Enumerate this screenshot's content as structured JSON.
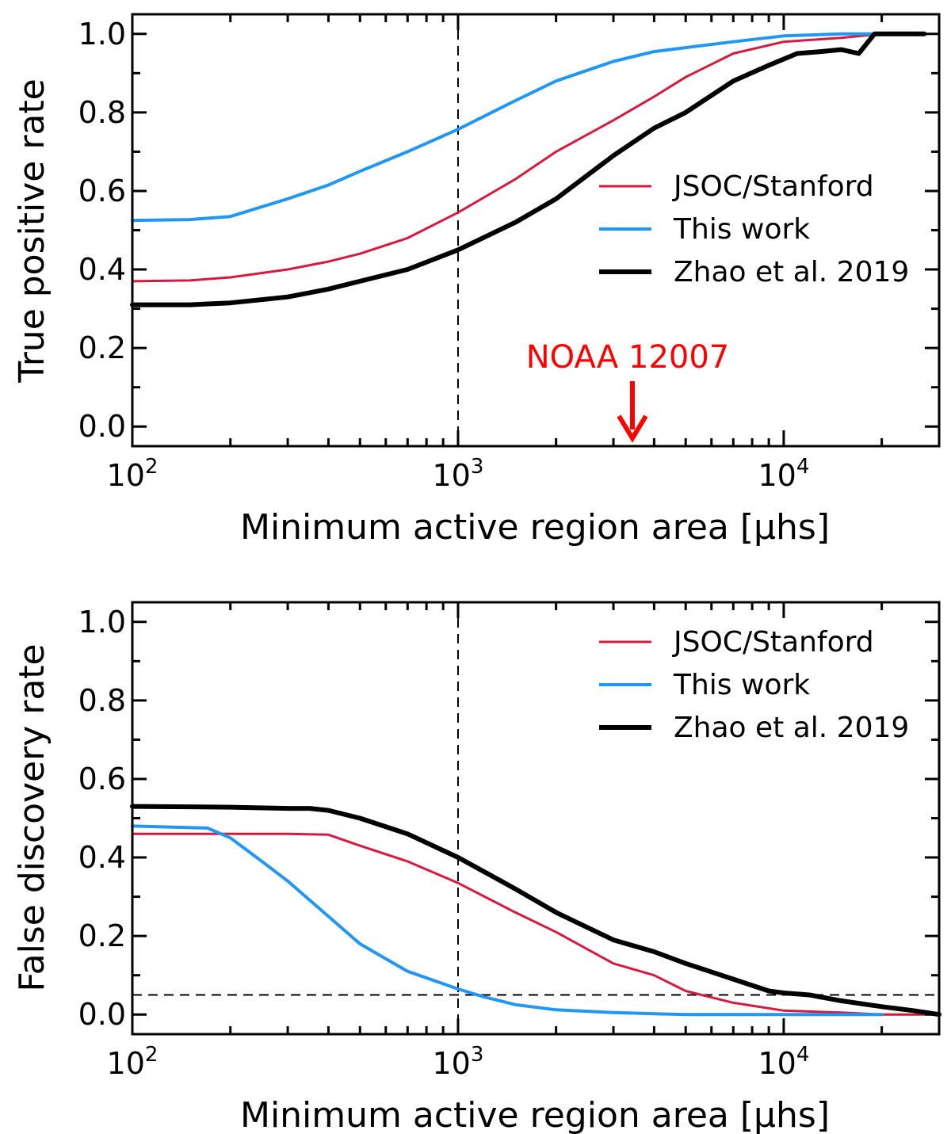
{
  "chart_data": [
    {
      "type": "line",
      "id": "tpr",
      "xscale": "log",
      "xlim": [
        100,
        30000
      ],
      "ylim": [
        -0.05,
        1.05
      ],
      "xlabel": "Minimum active region area",
      "xlabel_unit": "[μhs]",
      "ylabel": "True positive rate",
      "xticks": [
        {
          "value": 100,
          "base": "10",
          "exp": "2"
        },
        {
          "value": 1000,
          "base": "10",
          "exp": "3"
        },
        {
          "value": 10000,
          "base": "10",
          "exp": "4"
        }
      ],
      "yticks": [
        {
          "value": 0.0,
          "label": "0.0"
        },
        {
          "value": 0.2,
          "label": "0.2"
        },
        {
          "value": 0.4,
          "label": "0.4"
        },
        {
          "value": 0.6,
          "label": "0.6"
        },
        {
          "value": 0.8,
          "label": "0.8"
        },
        {
          "value": 1.0,
          "label": "1.0"
        }
      ],
      "vline_x": 1000,
      "hline_y": null,
      "legend_position": "center-right",
      "annotation": {
        "text": "NOAA 12007",
        "x": 3500,
        "color": "#ff0000"
      },
      "series": [
        {
          "name": "JSOC/Stanford",
          "color": "#d7193f",
          "width": 3,
          "x": [
            100,
            150,
            200,
            300,
            400,
            500,
            700,
            1000,
            1500,
            2000,
            3000,
            4000,
            5000,
            7000,
            10000,
            15000,
            20000,
            27000
          ],
          "y": [
            0.37,
            0.372,
            0.38,
            0.4,
            0.42,
            0.44,
            0.48,
            0.545,
            0.63,
            0.7,
            0.78,
            0.84,
            0.89,
            0.95,
            0.98,
            0.99,
            1.0,
            1.0
          ]
        },
        {
          "name": "This work",
          "color": "#2196f3",
          "width": 4,
          "x": [
            100,
            150,
            200,
            300,
            400,
            500,
            700,
            1000,
            1500,
            2000,
            3000,
            4000,
            5000,
            7000,
            10000,
            15000,
            20000,
            27000
          ],
          "y": [
            0.525,
            0.527,
            0.535,
            0.58,
            0.615,
            0.65,
            0.7,
            0.757,
            0.83,
            0.88,
            0.93,
            0.955,
            0.965,
            0.98,
            0.995,
            1.0,
            1.0,
            1.0
          ]
        },
        {
          "name": "Zhao et al. 2019",
          "color": "#000000",
          "width": 6,
          "x": [
            100,
            150,
            200,
            300,
            400,
            500,
            700,
            1000,
            1500,
            2000,
            3000,
            4000,
            5000,
            7000,
            9000,
            11000,
            13000,
            15000,
            17000,
            19000,
            23000,
            27000
          ],
          "y": [
            0.31,
            0.31,
            0.315,
            0.33,
            0.35,
            0.37,
            0.4,
            0.45,
            0.52,
            0.58,
            0.69,
            0.76,
            0.8,
            0.88,
            0.92,
            0.95,
            0.955,
            0.96,
            0.95,
            1.0,
            1.0,
            1.0
          ]
        }
      ]
    },
    {
      "type": "line",
      "id": "fdr",
      "xscale": "log",
      "xlim": [
        100,
        30000
      ],
      "ylim": [
        -0.05,
        1.05
      ],
      "xlabel": "Minimum active region area",
      "xlabel_unit": "[μhs]",
      "ylabel": "False discovery rate",
      "xticks": [
        {
          "value": 100,
          "base": "10",
          "exp": "2"
        },
        {
          "value": 1000,
          "base": "10",
          "exp": "3"
        },
        {
          "value": 10000,
          "base": "10",
          "exp": "4"
        }
      ],
      "yticks": [
        {
          "value": 0.0,
          "label": "0.0"
        },
        {
          "value": 0.2,
          "label": "0.2"
        },
        {
          "value": 0.4,
          "label": "0.4"
        },
        {
          "value": 0.6,
          "label": "0.6"
        },
        {
          "value": 0.8,
          "label": "0.8"
        },
        {
          "value": 1.0,
          "label": "1.0"
        }
      ],
      "vline_x": 1000,
      "hline_y": 0.05,
      "legend_position": "top-right",
      "annotation": null,
      "series": [
        {
          "name": "JSOC/Stanford",
          "color": "#d7193f",
          "width": 3,
          "x": [
            100,
            200,
            300,
            400,
            500,
            700,
            1000,
            1500,
            2000,
            3000,
            4000,
            5000,
            7000,
            10000,
            15000,
            20000,
            27000
          ],
          "y": [
            0.46,
            0.46,
            0.46,
            0.458,
            0.43,
            0.39,
            0.335,
            0.26,
            0.21,
            0.13,
            0.1,
            0.06,
            0.03,
            0.01,
            0.005,
            0.0,
            0.0
          ]
        },
        {
          "name": "This work",
          "color": "#2196f3",
          "width": 4,
          "x": [
            100,
            170,
            200,
            250,
            300,
            400,
            500,
            700,
            1000,
            1200,
            1500,
            2000,
            3000,
            4000,
            5000,
            10000,
            20000
          ],
          "y": [
            0.48,
            0.475,
            0.45,
            0.39,
            0.34,
            0.25,
            0.18,
            0.11,
            0.065,
            0.045,
            0.025,
            0.012,
            0.005,
            0.002,
            0.0,
            0.0,
            0.0
          ]
        },
        {
          "name": "Zhao et al. 2019",
          "color": "#000000",
          "width": 6,
          "x": [
            100,
            200,
            300,
            350,
            400,
            500,
            700,
            1000,
            1500,
            2000,
            3000,
            4000,
            5000,
            7000,
            9000,
            10000,
            12000,
            15000,
            20000,
            25000,
            30000
          ],
          "y": [
            0.53,
            0.528,
            0.525,
            0.525,
            0.52,
            0.5,
            0.46,
            0.4,
            0.32,
            0.26,
            0.19,
            0.16,
            0.13,
            0.09,
            0.06,
            0.055,
            0.05,
            0.035,
            0.02,
            0.01,
            0.0
          ]
        }
      ]
    }
  ]
}
